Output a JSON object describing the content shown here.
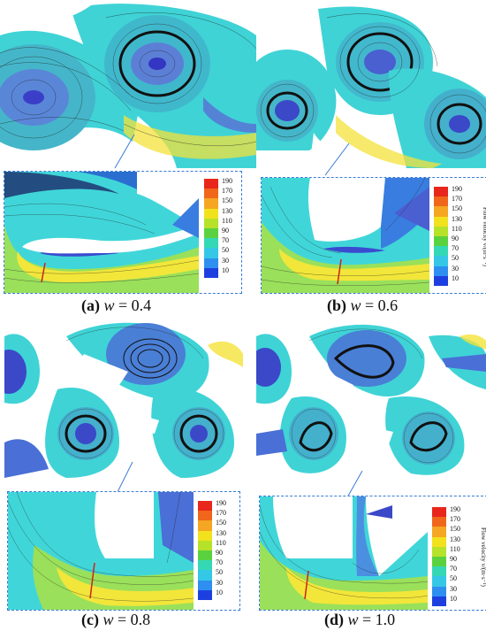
{
  "legend": {
    "title": "Flow velocity v/(m·s⁻¹)",
    "ticks": [
      "190",
      "170",
      "150",
      "130",
      "110",
      "90",
      "70",
      "50",
      "30",
      "10"
    ],
    "colors": [
      "#e8261b",
      "#f0661a",
      "#f5a623",
      "#f2e21d",
      "#b6e22a",
      "#5ad23f",
      "#35d8b5",
      "#35c7e6",
      "#2f8ff0",
      "#1e3fe0"
    ]
  },
  "panels": [
    {
      "label": "(a)",
      "variable": "w",
      "equals": " = 0.4"
    },
    {
      "label": "(b)",
      "variable": "w",
      "equals": " = 0.6"
    },
    {
      "label": "(c)",
      "variable": "w",
      "equals": " = 0.8"
    },
    {
      "label": "(d)",
      "variable": "w",
      "equals": " = 1.0"
    }
  ]
}
